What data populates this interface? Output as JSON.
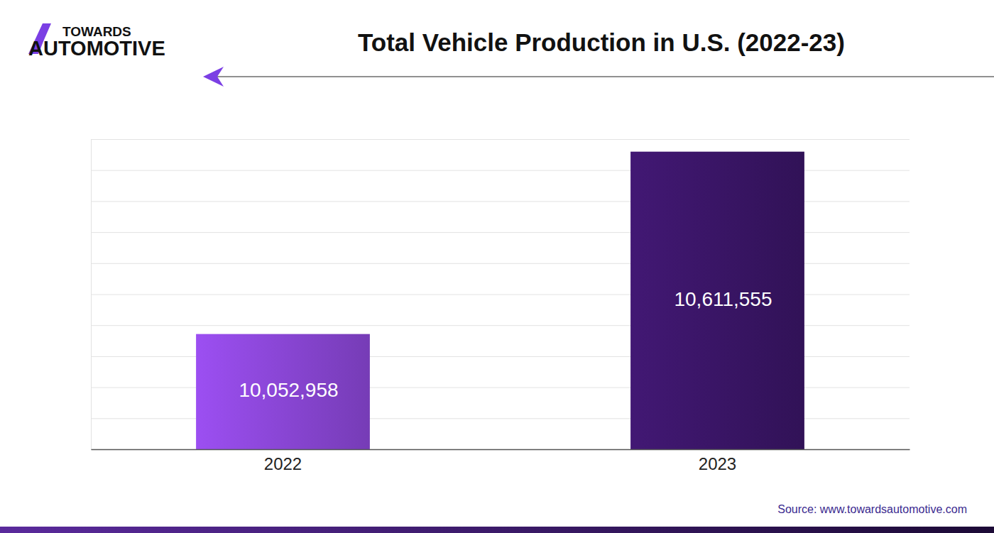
{
  "chart_data": {
    "type": "bar",
    "title": "Total Vehicle Production in U.S. (2022-23)",
    "brand": [
      "TOWARDS",
      "AUTOMOTIVE"
    ],
    "source": "Source: www.towardsautomotive.com",
    "categories": [
      "2022",
      "2023"
    ],
    "values": [
      10052958,
      10611555
    ],
    "value_labels": [
      "10,052,958",
      "10,611,555"
    ],
    "colors": [
      "#8a46d6",
      "#3a1566"
    ],
    "ylim": [
      9700000,
      10650000
    ],
    "yticks": [
      9700000,
      9795000,
      9890000,
      9985000,
      10080000,
      10175000,
      10270000,
      10365000,
      10460000,
      10555000,
      10650000
    ],
    "grid": true,
    "tick_labels": false,
    "data_labels": true
  }
}
